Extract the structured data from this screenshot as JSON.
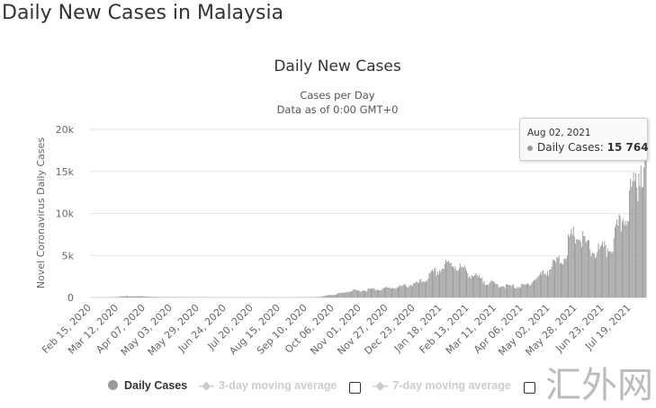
{
  "page_title": "Daily New Cases in Malaysia",
  "chart_data": {
    "type": "bar",
    "title": "Daily New Cases",
    "subtitle": [
      "Cases per Day",
      "Data as of 0:00 GMT+0"
    ],
    "ylabel": "Novel Coronavirus Daily Cases",
    "xlabel": "",
    "ylim": [
      0,
      20000
    ],
    "yticks": [
      0,
      5000,
      10000,
      15000,
      20000
    ],
    "ytick_labels": [
      "0",
      "5k",
      "10k",
      "15k",
      "20k"
    ],
    "xtick_labels": [
      "Feb 15, 2020",
      "Mar 12, 2020",
      "Apr 07, 2020",
      "May 03, 2020",
      "May 29, 2020",
      "Jun 24, 2020",
      "Jul 20, 2020",
      "Aug 15, 2020",
      "Sep 10, 2020",
      "Oct 06, 2020",
      "Nov 01, 2020",
      "Nov 27, 2020",
      "Dec 23, 2020",
      "Jan 18, 2021",
      "Feb 13, 2021",
      "Mar 11, 2021",
      "Apr 06, 2021",
      "May 02, 2021",
      "May 28, 2021",
      "Jun 23, 2021",
      "Jul 19, 2021"
    ],
    "x_start": "Feb 15, 2020",
    "total_days": 536,
    "xtick_interval_days": 26,
    "grid": true,
    "series": [
      {
        "name": "Daily Cases",
        "color": "#999999",
        "sample_interval_days": 7,
        "values": [
          0,
          0,
          0,
          20,
          100,
          150,
          150,
          150,
          100,
          60,
          50,
          40,
          40,
          30,
          20,
          30,
          30,
          10,
          5,
          5,
          10,
          10,
          10,
          10,
          10,
          10,
          10,
          10,
          10,
          20,
          30,
          50,
          100,
          300,
          400,
          600,
          800,
          800,
          900,
          1000,
          1000,
          1100,
          1200,
          1300,
          1500,
          1600,
          2000,
          2700,
          3200,
          3800,
          4000,
          3500,
          3000,
          2500,
          2000,
          1800,
          1500,
          1400,
          1300,
          1300,
          1400,
          2000,
          2600,
          3200,
          4000,
          4500,
          6500,
          7500,
          6500,
          5500,
          5500,
          5500,
          6500,
          8500,
          11000,
          13000,
          16500,
          17000
        ]
      }
    ],
    "legend": {
      "placement": "bottom",
      "items": [
        "Daily Cases",
        "3-day moving average",
        "7-day moving average"
      ]
    },
    "tooltip": {
      "date": "Aug 02, 2021",
      "label": "Daily Cases:",
      "value": "15 764"
    }
  },
  "watermark": "汇外网"
}
